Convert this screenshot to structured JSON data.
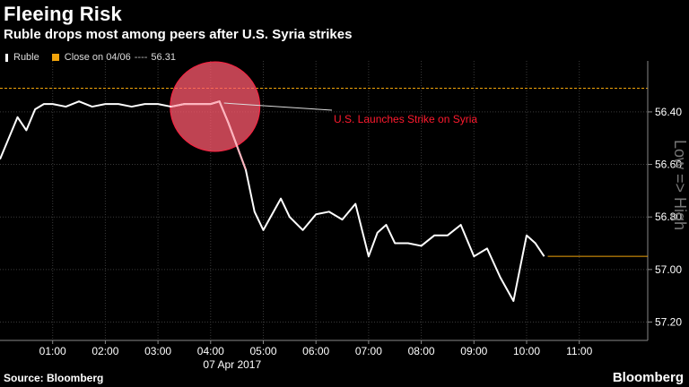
{
  "header": {
    "title": "Fleeing Risk",
    "subtitle": "Ruble drops most among peers after U.S. Syria strikes"
  },
  "legend": {
    "ruble_label": "Ruble",
    "close_label": "Close on 04/06",
    "close_value": "56.31"
  },
  "footer": {
    "source": "Source: Bloomberg",
    "brand": "Bloomberg"
  },
  "colors": {
    "background": "#000000",
    "line": "#ffffff",
    "close_line": "#f0a30a",
    "highlight": "#ff5a6e",
    "annotation": "#ff1a2e"
  },
  "chart_data": {
    "type": "line",
    "xlabel": "07 Apr 2017",
    "x_tick_labels": [
      "01:00",
      "02:00",
      "03:00",
      "04:00",
      "05:00",
      "06:00",
      "07:00",
      "08:00",
      "09:00",
      "10:00",
      "11:00"
    ],
    "y_tick_labels": [
      "56.40",
      "56.60",
      "56.80",
      "57.00",
      "57.20"
    ],
    "ylim_top": 56.24,
    "ylim_bottom": 57.27,
    "y_axis_inverted": true,
    "y_axis_note": "Low => High",
    "close_value": 56.31,
    "annotation": {
      "text": "U.S. Launches Strike on Syria",
      "x": "04:05",
      "y": 56.38
    },
    "series": [
      {
        "name": "Ruble",
        "x": [
          "00:00",
          "00:10",
          "00:20",
          "00:30",
          "00:40",
          "00:50",
          "01:00",
          "01:15",
          "01:30",
          "01:45",
          "02:00",
          "02:15",
          "02:30",
          "02:45",
          "03:00",
          "03:15",
          "03:30",
          "03:45",
          "04:00",
          "04:10",
          "04:20",
          "04:30",
          "04:40",
          "04:50",
          "05:00",
          "05:10",
          "05:20",
          "05:30",
          "05:45",
          "06:00",
          "06:15",
          "06:30",
          "06:45",
          "07:00",
          "07:10",
          "07:20",
          "07:30",
          "07:45",
          "08:00",
          "08:15",
          "08:30",
          "08:45",
          "09:00",
          "09:15",
          "09:30",
          "09:45",
          "10:00",
          "10:10",
          "10:20"
        ],
        "values": [
          56.58,
          56.5,
          56.42,
          56.47,
          56.39,
          56.37,
          56.37,
          56.38,
          56.36,
          56.38,
          56.37,
          56.37,
          56.38,
          56.37,
          56.37,
          56.38,
          56.37,
          56.37,
          56.37,
          56.36,
          56.44,
          56.53,
          56.62,
          56.78,
          56.85,
          56.79,
          56.73,
          56.8,
          56.85,
          56.79,
          56.78,
          56.81,
          56.75,
          56.95,
          56.86,
          56.83,
          56.9,
          56.9,
          56.91,
          56.87,
          56.87,
          56.83,
          56.95,
          56.92,
          57.03,
          57.12,
          56.87,
          56.9,
          56.95
        ]
      }
    ]
  }
}
